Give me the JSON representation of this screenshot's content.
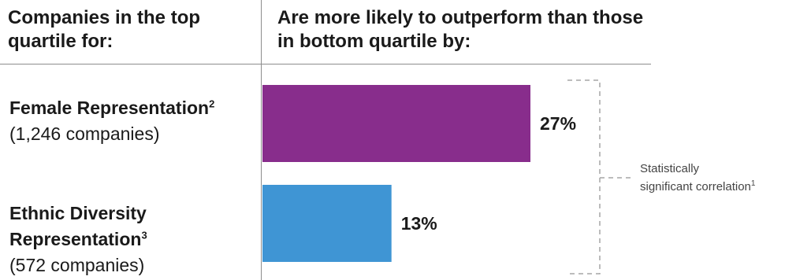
{
  "header": {
    "left": "Companies in the top quartile for:",
    "right": "Are more likely to outperform than those in bottom quartile by:"
  },
  "rows": [
    {
      "name": "Female Representation",
      "footnote": "2",
      "count": "(1,246 companies)"
    },
    {
      "name": "Ethnic Diversity Representation",
      "footnote": "3",
      "count": "(572 companies)"
    }
  ],
  "chart_data": {
    "type": "bar",
    "orientation": "horizontal",
    "categories": [
      "Female Representation",
      "Ethnic Diversity Representation"
    ],
    "values": [
      27,
      13
    ],
    "value_labels": [
      "27%",
      "13%"
    ],
    "colors": [
      "#882d8c",
      "#3f95d4"
    ],
    "xlim": [
      0,
      27
    ],
    "grid": false,
    "legend": "none"
  },
  "bracket_note": {
    "text": "Statistically significant correlation",
    "footnote": "1"
  }
}
